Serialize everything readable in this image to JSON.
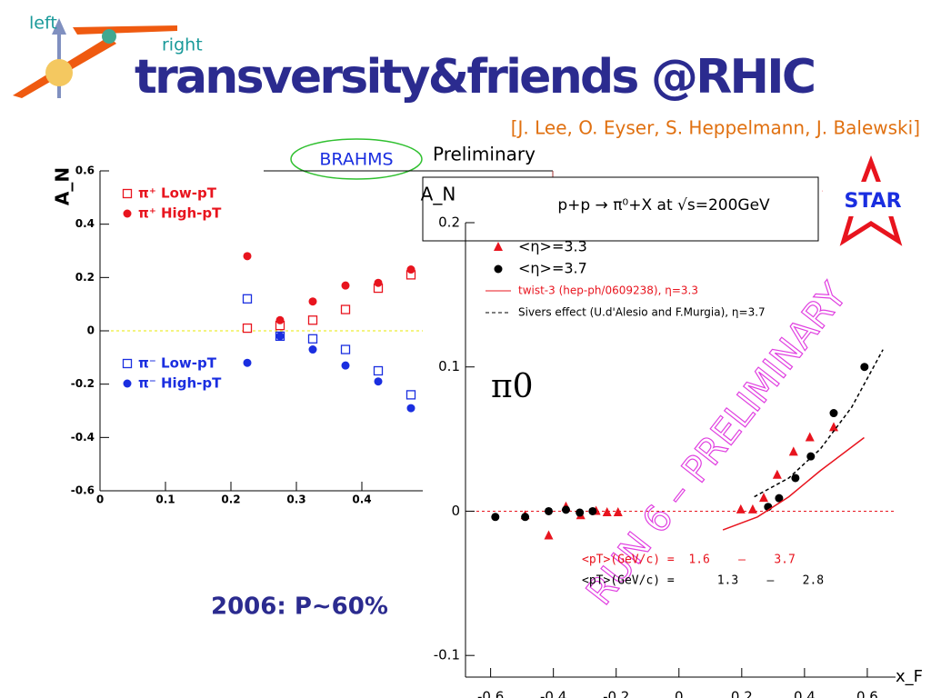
{
  "header": {
    "title": "transversity&friends @RHIC",
    "logo_left": "left",
    "logo_right": "right",
    "authors": "[J. Lee, O. Eyser, S. Heppelmann, J. Balewski]",
    "note": "2006: P~60%",
    "brahms": "BRAHMS",
    "preliminary": "Preliminary",
    "star": "STAR"
  },
  "chart_data": [
    {
      "type": "scatter",
      "y_label": "A_N",
      "xlim": [
        0,
        0.5
      ],
      "ylim": [
        -0.6,
        0.6
      ],
      "xticks": [
        0,
        0.1,
        0.2,
        0.3,
        0.4
      ],
      "yticks": [
        -0.6,
        -0.4,
        -0.2,
        0,
        0.2,
        0.4,
        0.6
      ],
      "series": [
        {
          "name": "π⁺ Low-pT",
          "color": "#e8141e",
          "marker": "open-square",
          "x": [
            0.225,
            0.275,
            0.325,
            0.375,
            0.425,
            0.475
          ],
          "values": [
            0.01,
            0.02,
            0.04,
            0.08,
            0.16,
            0.21
          ]
        },
        {
          "name": "π⁺ High-pT",
          "color": "#e8141e",
          "marker": "filled-circle",
          "x": [
            0.225,
            0.275,
            0.325,
            0.375,
            0.425,
            0.475
          ],
          "values": [
            0.28,
            0.04,
            0.11,
            0.17,
            0.18,
            0.23
          ]
        },
        {
          "name": "π⁻ Low-pT",
          "color": "#1a2ee0",
          "marker": "open-square",
          "x": [
            0.225,
            0.275,
            0.325,
            0.375,
            0.425,
            0.475
          ],
          "values": [
            0.12,
            -0.02,
            -0.03,
            -0.07,
            -0.15,
            -0.24
          ]
        },
        {
          "name": "π⁻ High-pT",
          "color": "#1a2ee0",
          "marker": "filled-circle",
          "x": [
            0.225,
            0.275,
            0.325,
            0.375,
            0.425,
            0.475
          ],
          "values": [
            -0.12,
            -0.02,
            -0.07,
            -0.13,
            -0.19,
            -0.29
          ]
        }
      ]
    },
    {
      "type": "scatter",
      "title": "p+p → π⁰+X at √s=200GeV",
      "y_label": "A_N",
      "x_label": "x_F",
      "annotation": "π0",
      "watermark": "RUN 6 – PRELIMINARY",
      "pt_lines": [
        "<pT>(GeV/c) =  1.6    –    3.7",
        "<pT>(GeV/c) =      1.3    –    2.8"
      ],
      "xlim": [
        -0.68,
        0.69
      ],
      "ylim": [
        -0.115,
        0.2
      ],
      "xticks": [
        -0.6,
        -0.4,
        -0.2,
        0,
        0.2,
        0.4,
        0.6
      ],
      "yticks": [
        -0.1,
        0,
        0.1,
        0.2
      ],
      "series": [
        {
          "name": "<η>=3.3",
          "color": "#e8141e",
          "marker": "triangle",
          "x": [
            -0.49,
            -0.415,
            -0.36,
            -0.313,
            -0.264,
            -0.229,
            -0.194,
            0.197,
            0.235,
            0.27,
            0.313,
            0.365,
            0.417,
            0.493
          ],
          "values": [
            -0.003,
            -0.017,
            0.003,
            -0.003,
            0,
            -0.001,
            -0.001,
            0.001,
            0.001,
            0.009,
            0.025,
            0.041,
            0.051,
            0.058
          ]
        },
        {
          "name": "<η>=3.7",
          "color": "#000000",
          "marker": "filled-circle",
          "x": [
            -0.585,
            -0.49,
            -0.415,
            -0.36,
            -0.316,
            -0.275,
            0.284,
            0.319,
            0.371,
            0.42,
            0.493,
            0.591
          ],
          "values": [
            -0.004,
            -0.004,
            0,
            0.001,
            -0.001,
            0,
            0.003,
            0.009,
            0.023,
            0.038,
            0.068,
            0.1
          ]
        },
        {
          "name": "twist-3 (hep-ph/0609238), η=3.3",
          "color": "#e8141e",
          "marker": "line",
          "x": [
            0.14,
            0.25,
            0.35,
            0.45,
            0.59
          ],
          "values": [
            -0.013,
            -0.004,
            0.01,
            0.028,
            0.051
          ]
        },
        {
          "name": "Sivers effect (U.d'Alesio and F.Murgia), η=3.7",
          "color": "#000000",
          "marker": "dashed-line",
          "x": [
            0.24,
            0.35,
            0.45,
            0.55,
            0.65
          ],
          "values": [
            0.01,
            0.023,
            0.043,
            0.072,
            0.112
          ]
        }
      ]
    }
  ]
}
